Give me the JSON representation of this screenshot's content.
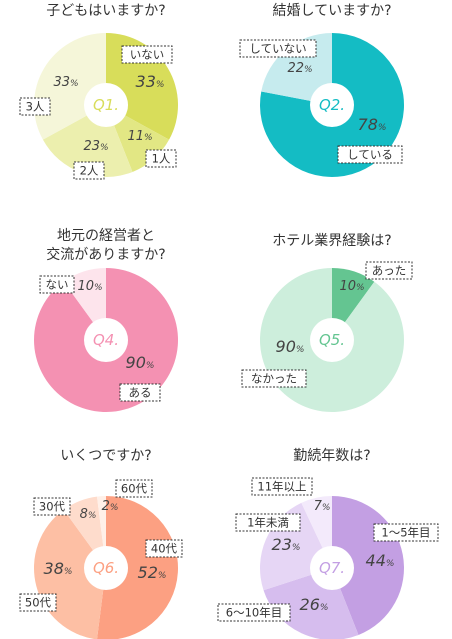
{
  "charts": [
    {
      "id": "q1",
      "question": "子どもはいますか?",
      "badge": "Q1.",
      "chart_data": {
        "type": "pie",
        "slices": [
          {
            "label": "いない",
            "value": 33,
            "pct_text": "33",
            "color": "#d8dd5a"
          },
          {
            "label": "1人",
            "value": 11,
            "pct_text": "11",
            "color": "#e2e784"
          },
          {
            "label": "2人",
            "value": 23,
            "pct_text": "23",
            "color": "#ecefae"
          },
          {
            "label": "3人",
            "value": 33,
            "pct_text": "33",
            "color": "#f5f6d9"
          }
        ]
      }
    },
    {
      "id": "q2",
      "question": "結婚していますか?",
      "badge": "Q2.",
      "chart_data": {
        "type": "pie",
        "slices": [
          {
            "label": "している",
            "value": 78,
            "pct_text": "78",
            "color": "#14bcc4"
          },
          {
            "label": "していない",
            "value": 22,
            "pct_text": "22",
            "color": "#c6ebee"
          }
        ]
      }
    },
    {
      "id": "q4",
      "question": "地元の経営者と\n交流がありますか?",
      "badge": "Q4.",
      "chart_data": {
        "type": "pie",
        "slices": [
          {
            "label": "ある",
            "value": 90,
            "pct_text": "90",
            "color": "#f491b2"
          },
          {
            "label": "ない",
            "value": 10,
            "pct_text": "10",
            "color": "#fde4ec"
          }
        ]
      }
    },
    {
      "id": "q5",
      "question": "ホテル業界経験は?",
      "badge": "Q5.",
      "chart_data": {
        "type": "pie",
        "slices": [
          {
            "label": "あった",
            "value": 10,
            "pct_text": "10",
            "color": "#64c591"
          },
          {
            "label": "なかった",
            "value": 90,
            "pct_text": "90",
            "color": "#cdeedc"
          }
        ]
      }
    },
    {
      "id": "q6",
      "question": "いくつですか?",
      "badge": "Q6.",
      "chart_data": {
        "type": "pie",
        "slices": [
          {
            "label": "40代",
            "value": 52,
            "pct_text": "52",
            "color": "#fca082"
          },
          {
            "label": "50代",
            "value": 38,
            "pct_text": "38",
            "color": "#fdbfa4"
          },
          {
            "label": "30代",
            "value": 8,
            "pct_text": "8",
            "color": "#fedccc"
          },
          {
            "label": "60代",
            "value": 2,
            "pct_text": "2",
            "color": "#fff0e8"
          }
        ]
      }
    },
    {
      "id": "q7",
      "question": "勤続年数は?",
      "badge": "Q7.",
      "chart_data": {
        "type": "pie",
        "slices": [
          {
            "label": "1〜5年目",
            "value": 44,
            "pct_text": "44",
            "color": "#c39fe3"
          },
          {
            "label": "6〜10年目",
            "value": 26,
            "pct_text": "26",
            "color": "#d6bdee"
          },
          {
            "label": "1年未満",
            "value": 23,
            "pct_text": "23",
            "color": "#e6d6f5"
          },
          {
            "label": "11年以上",
            "value": 7,
            "pct_text": "7",
            "color": "#f3eafb"
          }
        ]
      }
    }
  ],
  "percent_sign": "%",
  "badge_text_color": "#f4c8df",
  "inner_circle_color": "#ffffff"
}
